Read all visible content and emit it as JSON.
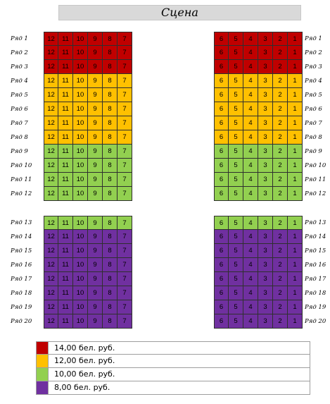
{
  "stage_label": "Сцена",
  "left_seats": [
    "12",
    "11",
    "10",
    "9",
    "8",
    "7"
  ],
  "right_seats": [
    "6",
    "5",
    "4",
    "3",
    "2",
    "1"
  ],
  "colors": {
    "red": "#c00000",
    "orange": "#ffc000",
    "green": "#92d050",
    "purple": "#7030a0"
  },
  "sections": [
    {
      "rows": [
        {
          "label": "Ряд 1",
          "tier": "red"
        },
        {
          "label": "Ряд 2",
          "tier": "red"
        },
        {
          "label": "Ряд 3",
          "tier": "red"
        },
        {
          "label": "Ряд 4",
          "tier": "orange"
        },
        {
          "label": "Ряд 5",
          "tier": "orange"
        },
        {
          "label": "Ряд 6",
          "tier": "orange"
        },
        {
          "label": "Ряд 7",
          "tier": "orange"
        },
        {
          "label": "Ряд 8",
          "tier": "orange"
        },
        {
          "label": "Ряд 9",
          "tier": "green"
        },
        {
          "label": "Ряд 10",
          "tier": "green"
        },
        {
          "label": "Ряд 11",
          "tier": "green"
        },
        {
          "label": "Ряд 12",
          "tier": "green"
        }
      ]
    },
    {
      "rows": [
        {
          "label": "Ряд 13",
          "tier": "green"
        },
        {
          "label": "Ряд 14",
          "tier": "purple"
        },
        {
          "label": "Ряд 15",
          "tier": "purple"
        },
        {
          "label": "Ряд 16",
          "tier": "purple"
        },
        {
          "label": "Ряд 17",
          "tier": "purple"
        },
        {
          "label": "Ряд 18",
          "tier": "purple"
        },
        {
          "label": "Ряд 19",
          "tier": "purple"
        },
        {
          "label": "Ряд 20",
          "tier": "purple"
        }
      ]
    }
  ],
  "legend": [
    {
      "tier": "red",
      "label": "14,00 бел. руб."
    },
    {
      "tier": "orange",
      "label": "12,00 бел. руб."
    },
    {
      "tier": "green",
      "label": "10,00 бел. руб."
    },
    {
      "tier": "purple",
      "label": "8,00 бел. руб."
    }
  ]
}
